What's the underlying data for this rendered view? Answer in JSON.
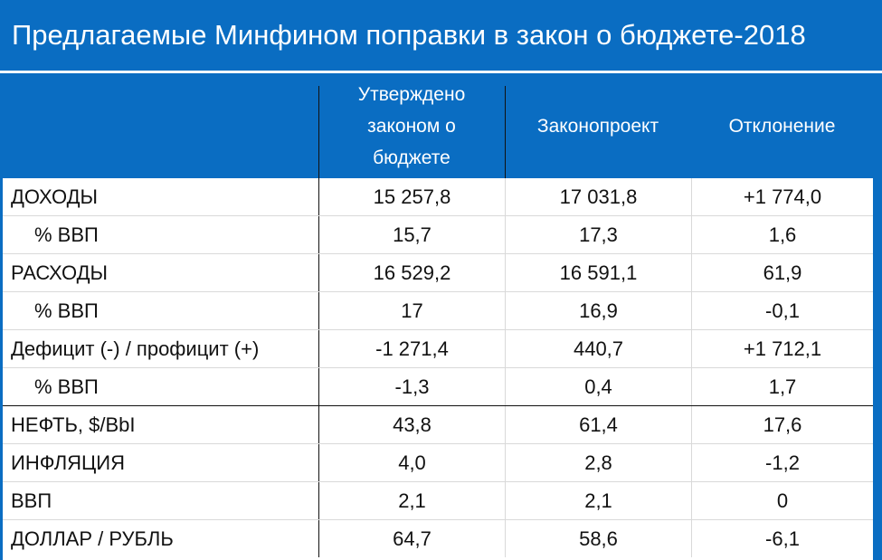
{
  "title": "Предлагаемые Минфином поправки в закон о бюджете-2018",
  "colors": {
    "header_bg": "#0a6dc2",
    "header_text": "#ffffff",
    "body_text": "#111111"
  },
  "columns": {
    "approved_line1": "Утверждено",
    "approved_line2": "законом о",
    "approved_line3": "бюджете",
    "draft": "Законопроект",
    "deviation": "Отклонение"
  },
  "rows": [
    {
      "label": "ДОХОДЫ",
      "approved": "15 257,8",
      "draft": "17 031,8",
      "deviation": "+1 774,0"
    },
    {
      "label": "% ВВП",
      "approved": "15,7",
      "draft": "17,3",
      "deviation": "1,6"
    },
    {
      "label": "РАСХОДЫ",
      "approved": "16 529,2",
      "draft": "16 591,1",
      "deviation": "61,9"
    },
    {
      "label": "% ВВП",
      "approved": "17",
      "draft": "16,9",
      "deviation": "-0,1"
    },
    {
      "label": "Дефицит (-) / профицит (+)",
      "approved": "-1 271,4",
      "draft": "440,7",
      "deviation": "+1 712,1"
    },
    {
      "label": "% ВВП",
      "approved": "-1,3",
      "draft": "0,4",
      "deviation": "1,7"
    },
    {
      "label": "НЕФТЬ, $/BbI",
      "approved": "43,8",
      "draft": "61,4",
      "deviation": "17,6"
    },
    {
      "label": "ИНФЛЯЦИЯ",
      "approved": "4,0",
      "draft": "2,8",
      "deviation": "-1,2"
    },
    {
      "label": "ВВП",
      "approved": "2,1",
      "draft": "2,1",
      "deviation": "0"
    },
    {
      "label": "ДОЛЛАР / РУБЛЬ",
      "approved": "64,7",
      "draft": "58,6",
      "deviation": "-6,1"
    }
  ]
}
